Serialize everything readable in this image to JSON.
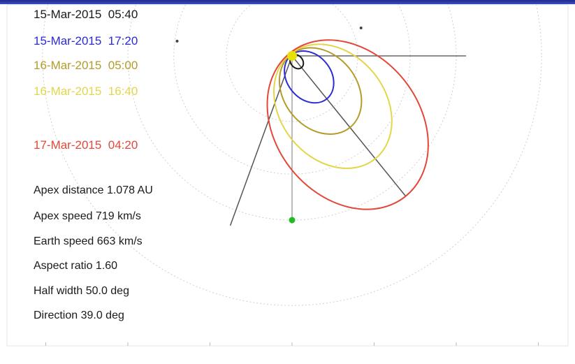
{
  "chart_data": {
    "type": "line",
    "title": "",
    "xlabel": "",
    "ylabel": "",
    "timestamps": [
      {
        "label": "15-Mar-2015  05:40",
        "color": "#1a1a1a"
      },
      {
        "label": "15-Mar-2015  17:20",
        "color": "#2b2bd6"
      },
      {
        "label": "16-Mar-2015  05:00",
        "color": "#b49b2a"
      },
      {
        "label": "16-Mar-2015  16:40",
        "color": "#e3d64a"
      },
      {
        "label": "17-Mar-2015  04:20",
        "color": "#e2483a"
      }
    ],
    "parameters": [
      {
        "label": "Apex distance 1.078 AU"
      },
      {
        "label": "Apex speed 719 km/s"
      },
      {
        "label": "Earth speed 663 km/s"
      },
      {
        "label": "Aspect ratio 1.60"
      },
      {
        "label": "Half width 50.0 deg"
      },
      {
        "label": "Direction 39.0 deg"
      }
    ],
    "series": [
      {
        "color": "#1a1a1a",
        "apex_distance_au": 0.09
      },
      {
        "color": "#2b2bd6",
        "apex_distance_au": 0.33
      },
      {
        "color": "#b49b2a",
        "apex_distance_au": 0.55
      },
      {
        "color": "#e3d64a",
        "apex_distance_au": 0.79
      },
      {
        "color": "#e2483a",
        "apex_distance_au": 1.078
      }
    ],
    "direction_deg": 39.0,
    "half_width_deg": 50.0,
    "aspect_ratio": 1.6,
    "bodies": [
      {
        "name": "sun",
        "x": 0.0,
        "y": 0.0,
        "color": "#e8e000"
      },
      {
        "name": "earth",
        "x": 0.0,
        "y": -1.0,
        "color": "#22bb22"
      },
      {
        "name": "planet-1",
        "x": -0.7,
        "y": 0.09,
        "color": "#444444"
      },
      {
        "name": "planet-2",
        "x": 0.42,
        "y": 0.17,
        "color": "#444444"
      }
    ],
    "xlim": [
      -1.6,
      1.6
    ],
    "ylim": [
      -1.35,
      0.35
    ],
    "grid": true,
    "orbit_radii_au": [
      0.4,
      0.72,
      1.0,
      1.52
    ]
  }
}
